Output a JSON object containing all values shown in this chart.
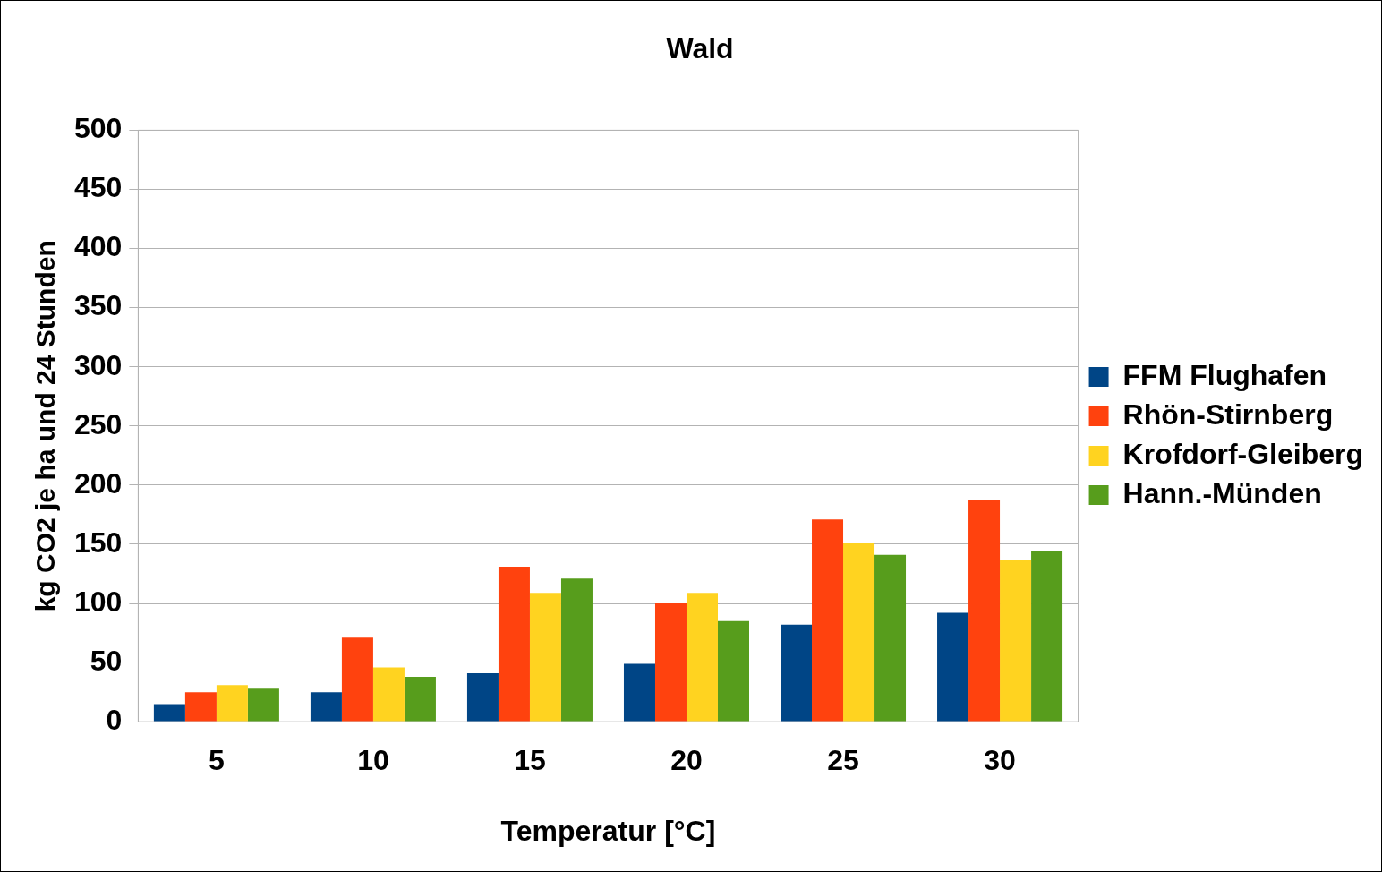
{
  "chart_data": {
    "type": "bar",
    "title": "Wald",
    "xlabel": "Temperatur [°C]",
    "ylabel": "kg CO2 je ha und 24 Stunden",
    "categories": [
      "5",
      "10",
      "15",
      "20",
      "25",
      "30"
    ],
    "series": [
      {
        "name": "FFM Flughafen",
        "color": "#004586",
        "values": [
          15,
          25,
          41,
          49,
          82,
          92
        ]
      },
      {
        "name": "Rhön-Stirnberg",
        "color": "#ff420e",
        "values": [
          25,
          71,
          131,
          100,
          171,
          187
        ]
      },
      {
        "name": "Krofdorf-Gleiberg",
        "color": "#ffd320",
        "values": [
          31,
          46,
          109,
          109,
          151,
          137
        ]
      },
      {
        "name": "Hann.-Münden",
        "color": "#579d1c",
        "values": [
          28,
          38,
          121,
          85,
          141,
          144
        ]
      }
    ],
    "ylim": [
      0,
      500
    ],
    "yticks": [
      0,
      50,
      100,
      150,
      200,
      250,
      300,
      350,
      400,
      450,
      500
    ],
    "grid": "y",
    "legend": "right"
  }
}
